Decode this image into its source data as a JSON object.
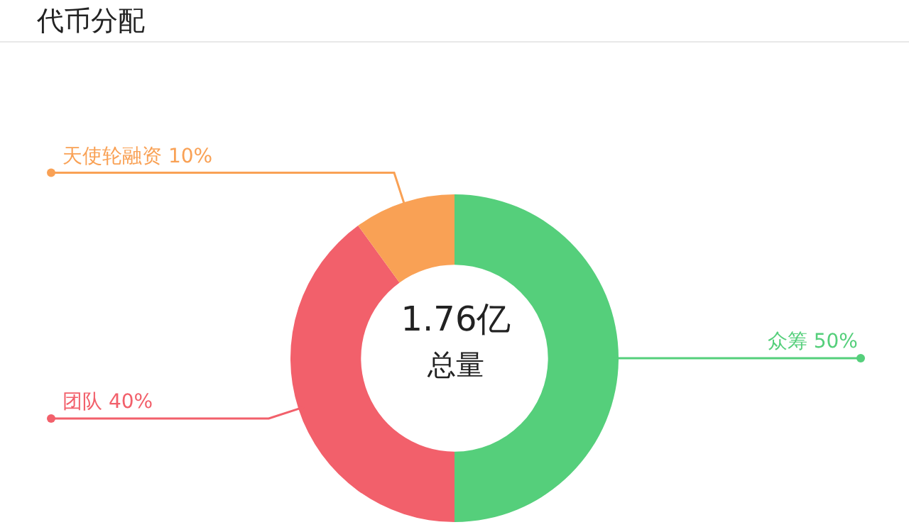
{
  "chart_data": {
    "type": "donut",
    "title": "代币分配",
    "annotations": [
      "1.76亿",
      "总量"
    ],
    "categories": [
      "众筹",
      "团队",
      "天使轮融资"
    ],
    "values": [
      50,
      40,
      10
    ],
    "colors": [
      "#55cf7b",
      "#f2606b",
      "#f9a155"
    ],
    "value_labels": [
      "50%",
      "40%",
      "10%"
    ],
    "legend": false
  }
}
